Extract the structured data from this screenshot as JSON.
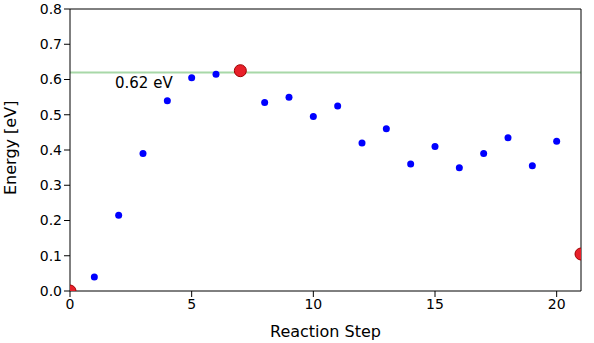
{
  "chart_data": {
    "type": "scatter",
    "x_label": "Reaction Step",
    "y_label": "Energy [eV]",
    "x": [
      0,
      1,
      2,
      3,
      4,
      5,
      6,
      7,
      8,
      9,
      10,
      11,
      12,
      13,
      14,
      15,
      16,
      17,
      18,
      19,
      20,
      21
    ],
    "values": [
      0.0,
      0.04,
      0.215,
      0.39,
      0.54,
      0.605,
      0.615,
      0.625,
      0.535,
      0.55,
      0.495,
      0.525,
      0.42,
      0.46,
      0.36,
      0.41,
      0.35,
      0.39,
      0.435,
      0.355,
      0.425,
      0.105
    ],
    "color": "#0000ff",
    "colors": [
      "#e8202a",
      "#0000ff",
      "#0000ff",
      "#0000ff",
      "#0000ff",
      "#0000ff",
      "#0000ff",
      "#e8202a",
      "#0000ff",
      "#0000ff",
      "#0000ff",
      "#0000ff",
      "#0000ff",
      "#0000ff",
      "#0000ff",
      "#0000ff",
      "#0000ff",
      "#0000ff",
      "#0000ff",
      "#0000ff",
      "#0000ff",
      "#e8202a"
    ],
    "xlim": [
      0,
      21
    ],
    "xticks": [
      0,
      5,
      10,
      15,
      20
    ],
    "ylim": [
      0,
      0.8
    ],
    "yticks": [
      {
        "value": 0,
        "label": "0.0"
      },
      {
        "value": 0.1,
        "label": "0.1"
      },
      {
        "value": 0.2,
        "label": "0.2"
      },
      {
        "value": 0.3,
        "label": "0.3"
      },
      {
        "value": 0.4,
        "label": "0.4"
      },
      {
        "value": 0.5,
        "label": "0.5"
      },
      {
        "value": 0.6,
        "label": "0.6"
      },
      {
        "value": 0.7,
        "label": "0.7"
      },
      {
        "value": 0.8,
        "label": "0.8"
      }
    ],
    "hline": {
      "value": 0.62,
      "label": "0.62 eV",
      "color": "#a8d8a8"
    }
  }
}
